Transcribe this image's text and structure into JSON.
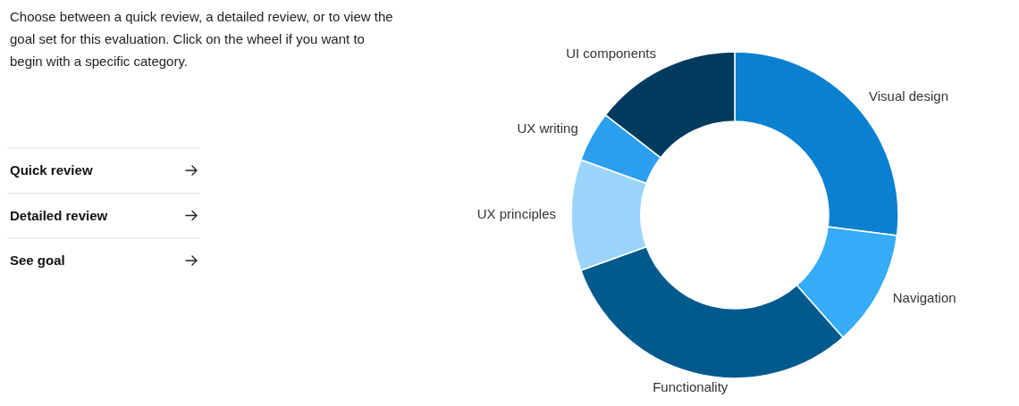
{
  "chart_data": [
    {
      "type": "donut",
      "categories": [
        "Visual design",
        "Navigation",
        "Functionality",
        "UX principles",
        "UX writing",
        "UI components"
      ],
      "values": [
        27,
        11.5,
        31,
        11,
        5,
        14.5
      ],
      "colors": [
        "#0a80d0",
        "#35acf5",
        "#005a8e",
        "#9cd5fb",
        "#2b9fee",
        "#003b5e"
      ]
    },
    {
      "type": "other",
      "annotations": [
        "Choose between a quick review, a detailed review, or to view the goal set for this evaluation. Click on the wheel if you want to begin with a specific category.",
        "Quick review",
        "Detailed review",
        "See goal"
      ]
    }
  ]
}
